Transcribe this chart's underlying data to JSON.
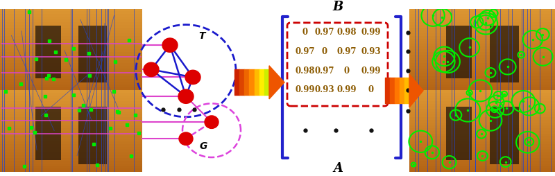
{
  "matrix_data": [
    [
      "0",
      "0.97",
      "0.98",
      "0.99"
    ],
    [
      "0.97",
      "0",
      "0.97",
      "0.93"
    ],
    [
      "0.98",
      "0.97",
      "0",
      "0.99"
    ],
    [
      "0.99",
      "0.93",
      "0.99",
      "0"
    ]
  ],
  "label_B": "B",
  "label_A": "A",
  "label_T": "T",
  "label_G": "G",
  "node_color": "#dd0000",
  "edge_color_T": "#1a1acc",
  "edge_color_G": "#dd44dd",
  "circle_T_color": "#1a1acc",
  "circle_G_color": "#dd44dd",
  "matrix_text_color": "#8B5A00",
  "bracket_color": "#2222cc",
  "red_box_color": "#cc0000",
  "dots_color": "#111111",
  "photo_sky_top": "#d4922a",
  "photo_sky_bot": "#8a6020",
  "photo_sea": "#a07828"
}
